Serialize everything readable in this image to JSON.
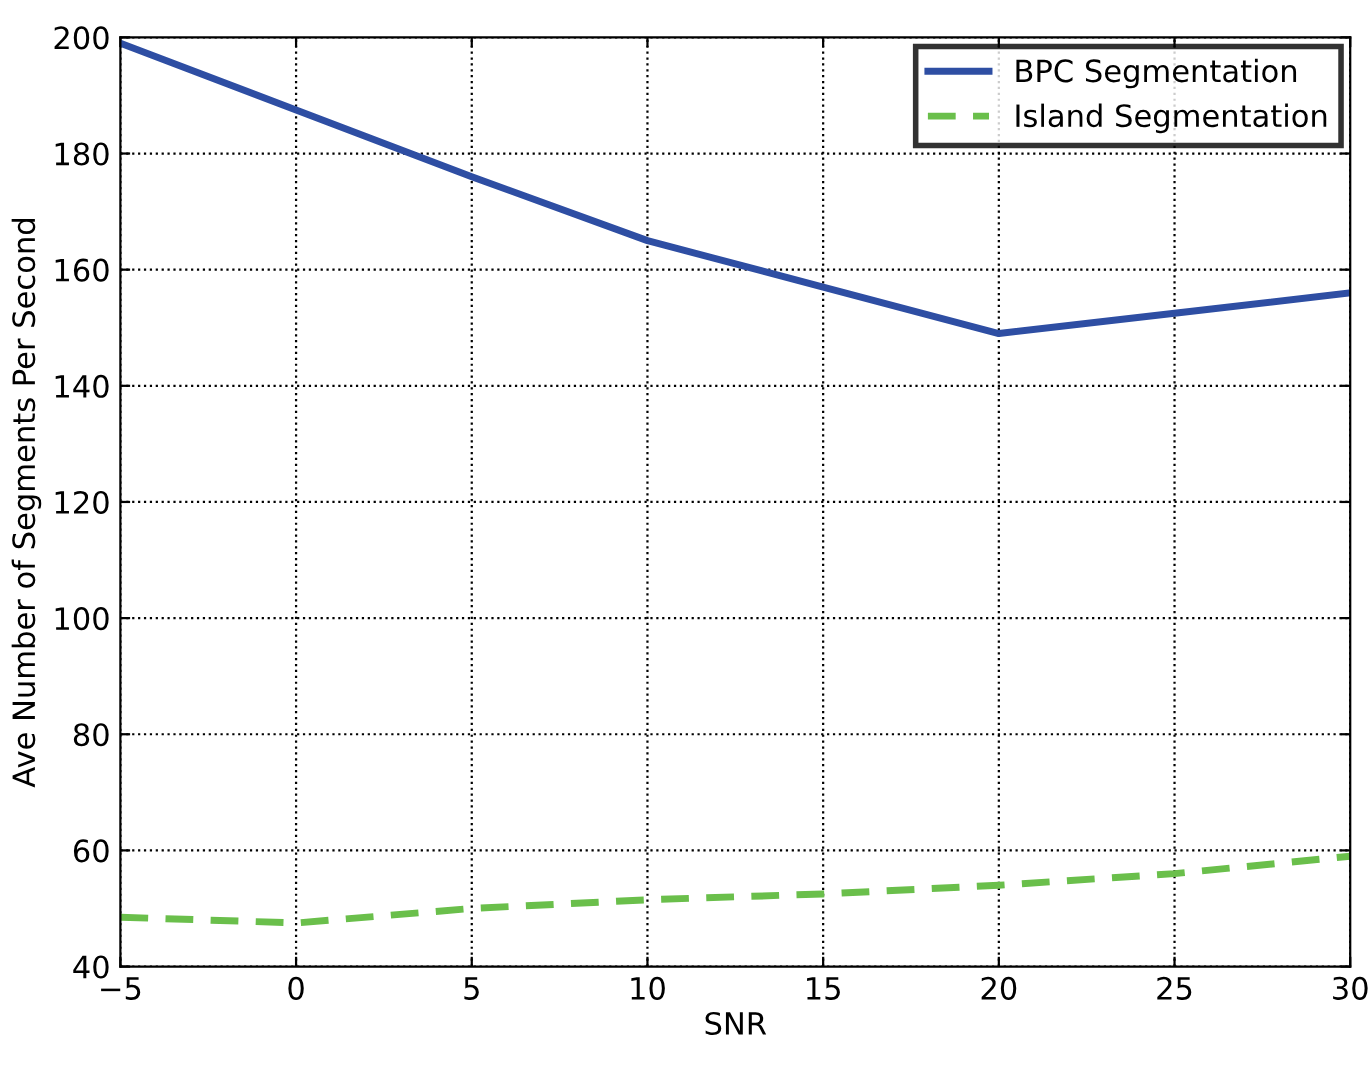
{
  "chart_data": {
    "type": "line",
    "xlabel": "SNR",
    "ylabel": "Ave Number of Segments Per Second",
    "x": [
      -5,
      0,
      5,
      10,
      15,
      20,
      25,
      30
    ],
    "series": [
      {
        "name": "BPC Segmentation",
        "color": "#2e4ea3",
        "values": [
          199,
          187.5,
          176,
          165,
          157,
          149,
          152.5,
          156
        ],
        "line_style": "solid"
      },
      {
        "name": "Island Segmentation",
        "color": "#6abf4b",
        "values": [
          48.5,
          47.5,
          50,
          51.5,
          52.5,
          54,
          56,
          59
        ],
        "line_style": "dashed"
      }
    ],
    "xlim": [
      -5,
      30
    ],
    "xticks": [
      {
        "value": -5,
        "label": "−5"
      },
      0,
      5,
      10,
      15,
      20,
      25,
      30
    ],
    "ylim": [
      40,
      200
    ],
    "yticks": [
      40,
      60,
      80,
      100,
      120,
      140,
      160,
      180,
      200
    ],
    "grid": true,
    "legend": "top right",
    "marker": "none"
  }
}
